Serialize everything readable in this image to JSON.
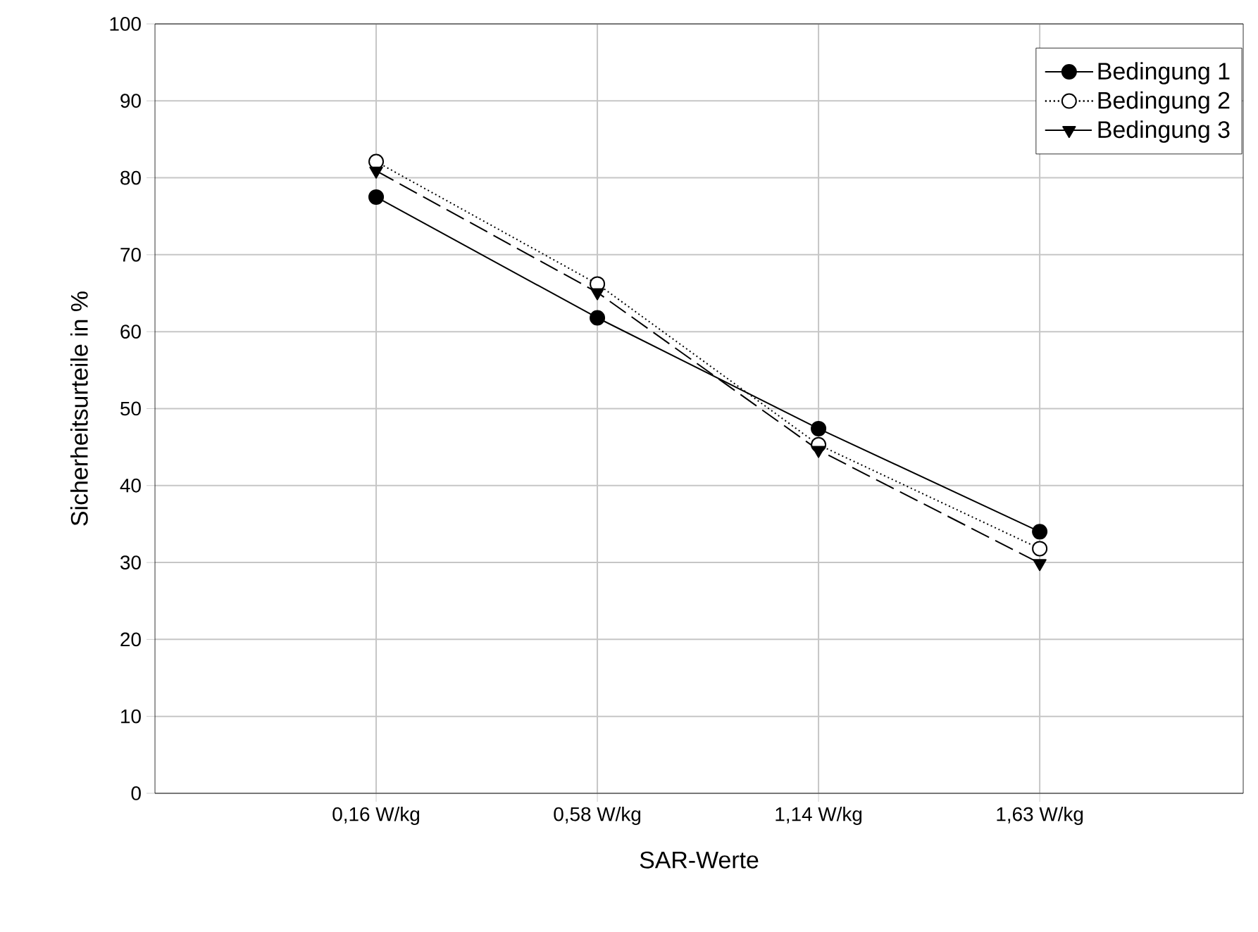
{
  "chart_data": {
    "type": "line",
    "xlabel": "SAR-Werte",
    "ylabel": "Sicherheitsurteile in %",
    "categories": [
      "0,16 W/kg",
      "0,58 W/kg",
      "1,14 W/kg",
      "1,63 W/kg"
    ],
    "series": [
      {
        "name": "Bedingung 1",
        "color": "#000000",
        "values": [
          77.5,
          61.8,
          47.4,
          34.0
        ],
        "marker": "circle",
        "line_style": "solid"
      },
      {
        "name": "Bedingung 2",
        "color": "#000000",
        "values": [
          82.1,
          66.2,
          45.3,
          31.8
        ],
        "marker": "circle",
        "line_style": "dotted"
      },
      {
        "name": "Bedingung 3",
        "color": "#000000",
        "values": [
          80.9,
          65.1,
          44.6,
          29.9
        ],
        "marker": "triangle",
        "line_style": "dashed"
      }
    ],
    "ylim": [
      0,
      100
    ],
    "yticks": [
      0,
      10,
      20,
      30,
      40,
      50,
      60,
      70,
      80,
      90,
      100
    ],
    "grid": true,
    "legend": "top right"
  }
}
